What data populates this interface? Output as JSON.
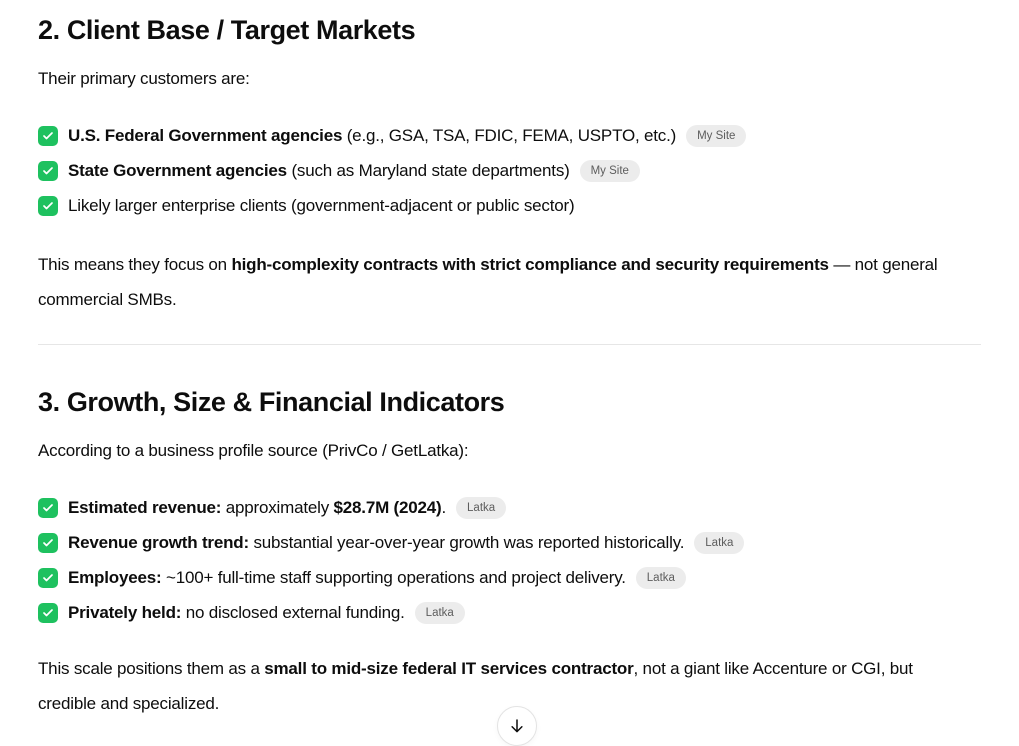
{
  "theme": {
    "text_color": "#0d0d0d",
    "check_green": "#1ec15f",
    "badge_bg": "#ececec",
    "badge_text": "#5d5d5d",
    "divider": "#e6e6e6"
  },
  "sections": [
    {
      "heading": "2. Client Base / Target Markets",
      "intro": "Their primary customers are:",
      "items": [
        {
          "check_icon": "check-icon",
          "segments": [
            {
              "text": "U.S. Federal Government agencies",
              "bold": true
            },
            {
              "text": " (e.g., GSA, TSA, FDIC, FEMA, USPTO, etc.)",
              "bold": false
            }
          ],
          "badge": "My Site"
        },
        {
          "check_icon": "check-icon",
          "segments": [
            {
              "text": "State Government agencies",
              "bold": true
            },
            {
              "text": " (such as Maryland state departments)",
              "bold": false
            }
          ],
          "badge": "My Site"
        },
        {
          "check_icon": "check-icon",
          "segments": [
            {
              "text": "Likely larger enterprise clients (government-adjacent or public sector)",
              "bold": false
            }
          ]
        }
      ],
      "summary": [
        {
          "text": "This means they focus on ",
          "bold": false
        },
        {
          "text": "high-complexity contracts with strict compliance and security requirements",
          "bold": true
        },
        {
          "text": " — not general commercial SMBs.",
          "bold": false
        }
      ]
    },
    {
      "heading": "3. Growth, Size & Financial Indicators",
      "intro": "According to a business profile source (PrivCo / GetLatka):",
      "items": [
        {
          "check_icon": "check-icon",
          "segments": [
            {
              "text": "Estimated revenue:",
              "bold": true
            },
            {
              "text": " approximately ",
              "bold": false
            },
            {
              "text": "$28.7M (2024)",
              "bold": true
            },
            {
              "text": ".",
              "bold": false
            }
          ],
          "badge": "Latka"
        },
        {
          "check_icon": "check-icon",
          "segments": [
            {
              "text": "Revenue growth trend:",
              "bold": true
            },
            {
              "text": " substantial year-over-year growth was reported historically.",
              "bold": false
            }
          ],
          "badge": "Latka"
        },
        {
          "check_icon": "check-icon",
          "segments": [
            {
              "text": "Employees:",
              "bold": true
            },
            {
              "text": " ~100+ full-time staff supporting operations and project delivery.",
              "bold": false
            }
          ],
          "badge": "Latka"
        },
        {
          "check_icon": "check-icon",
          "segments": [
            {
              "text": "Privately held:",
              "bold": true
            },
            {
              "text": " no disclosed external funding.",
              "bold": false
            }
          ],
          "badge": "Latka"
        }
      ],
      "summary": [
        {
          "text": "This scale positions them as a ",
          "bold": false
        },
        {
          "text": "small to mid-size federal IT services contractor",
          "bold": true
        },
        {
          "text": ", not a giant like Accenture or CGI, but credible and specialized.",
          "bold": false
        }
      ]
    }
  ],
  "scroll_button": {
    "icon": "arrow-down-icon"
  }
}
